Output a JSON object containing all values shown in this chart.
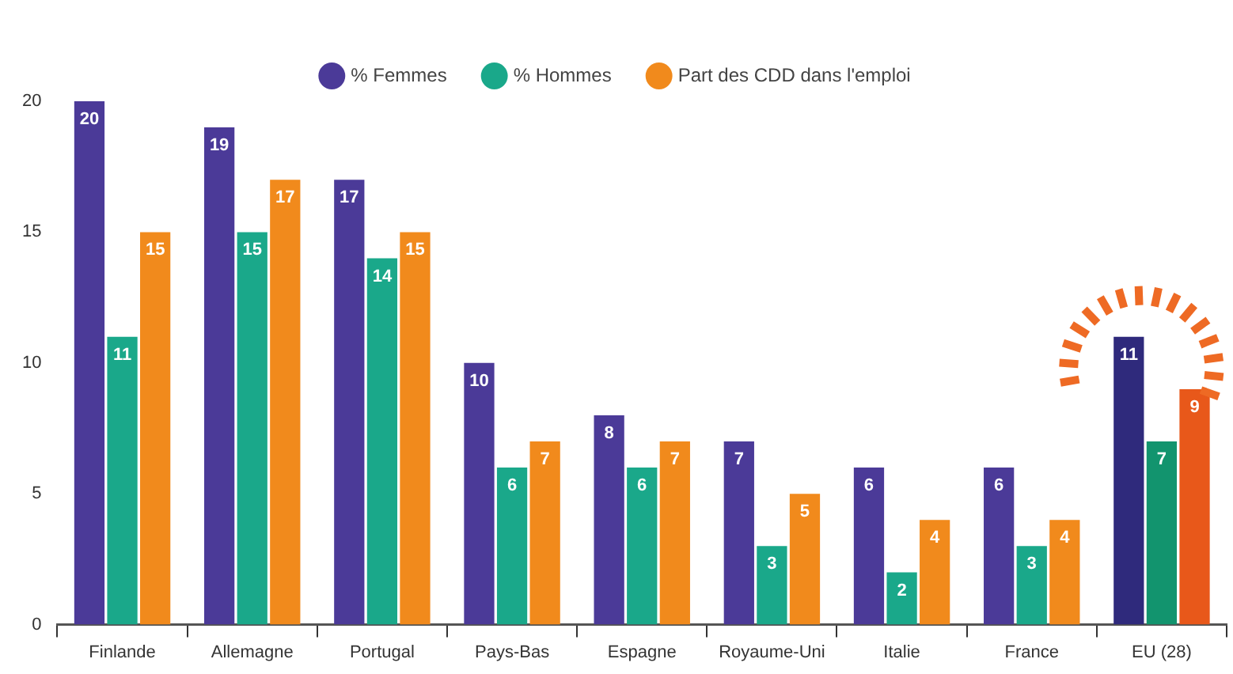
{
  "chart_data": {
    "type": "bar",
    "categories": [
      "Finlande",
      "Allemagne",
      "Portugal",
      "Pays-Bas",
      "Espagne",
      "Royaume-Uni",
      "Italie",
      "France",
      "EU (28)"
    ],
    "series": [
      {
        "name": "% Femmes",
        "color": "#4b3a98",
        "colors": [
          "#4b3a98",
          "#4b3a98",
          "#4b3a98",
          "#4b3a98",
          "#4b3a98",
          "#4b3a98",
          "#4b3a98",
          "#4b3a98",
          "#2f2a7c"
        ],
        "values": [
          20,
          19,
          17,
          10,
          8,
          7,
          6,
          6,
          11
        ]
      },
      {
        "name": "% Hommes",
        "color": "#1aa88a",
        "colors": [
          "#1aa88a",
          "#1aa88a",
          "#1aa88a",
          "#1aa88a",
          "#1aa88a",
          "#1aa88a",
          "#1aa88a",
          "#1aa88a",
          "#12946e"
        ],
        "values": [
          11,
          15,
          14,
          6,
          6,
          3,
          2,
          3,
          7
        ]
      },
      {
        "name": "Part des CDD dans l'emploi",
        "color": "#f18a1c",
        "colors": [
          "#f18a1c",
          "#f18a1c",
          "#f18a1c",
          "#f18a1c",
          "#f18a1c",
          "#f18a1c",
          "#f18a1c",
          "#f18a1c",
          "#e8581a"
        ],
        "values": [
          15,
          17,
          15,
          7,
          7,
          5,
          4,
          4,
          9
        ]
      }
    ],
    "ylim": [
      0,
      20
    ],
    "yticks": [
      0,
      5,
      10,
      15,
      20
    ],
    "grid": false,
    "legend": "top",
    "data_labels": true
  }
}
